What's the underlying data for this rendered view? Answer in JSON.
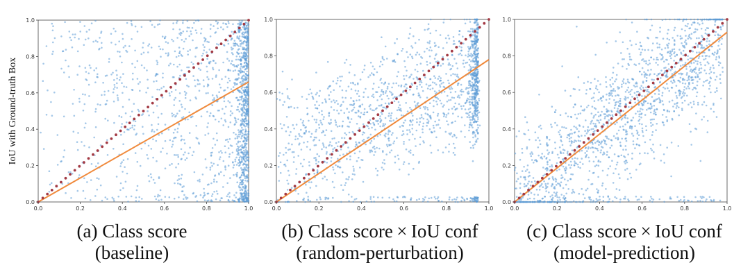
{
  "figure": {
    "ylabel": "IoU with Ground-truth Box"
  },
  "colors": {
    "scatter": "#5b9bd5",
    "fit_line": "#f08a3c",
    "identity_line": "#a33a44",
    "axis": "#444444",
    "background": "#ffffff"
  },
  "captions": [
    {
      "letter": "(a)",
      "line1": "(a) Class score",
      "line2": "(baseline)"
    },
    {
      "letter": "(b)",
      "line1": "(b) Class score × IoU conf",
      "line2": "(random-perturbation)"
    },
    {
      "letter": "(c)",
      "line1": "(c) Class score × IoU conf",
      "line2": "(model-prediction)"
    }
  ],
  "chart_data": [
    {
      "type": "scatter",
      "title": "(a) Class score (baseline)",
      "xlabel": "",
      "ylabel": "IoU with Ground-truth Box",
      "xlim": [
        0,
        1
      ],
      "ylim": [
        0,
        1
      ],
      "xticks": [
        "0.0",
        "0.2",
        "0.4",
        "0.6",
        "0.8",
        "1.0"
      ],
      "yticks": [
        "0.0",
        "0.2",
        "0.4",
        "0.6",
        "0.8",
        "1.0"
      ],
      "series": [
        {
          "name": "detections",
          "kind": "points",
          "n_points": 1600,
          "x_concentration": "dense near x=1.0",
          "y_range": [
            0,
            1
          ]
        },
        {
          "name": "linear fit",
          "kind": "line",
          "x": [
            0.0,
            1.0
          ],
          "y": [
            0.0,
            0.66
          ]
        },
        {
          "name": "y = x",
          "kind": "dotted-line",
          "x": [
            0.0,
            1.0
          ],
          "y": [
            0.0,
            1.0
          ]
        }
      ]
    },
    {
      "type": "scatter",
      "title": "(b) Class score × IoU conf (random-perturbation)",
      "xlabel": "",
      "ylabel": "",
      "xlim": [
        0,
        1
      ],
      "ylim": [
        0,
        1
      ],
      "xticks": [
        "0.0",
        "0.2",
        "0.4",
        "0.6",
        "0.8",
        "1.0"
      ],
      "yticks": [
        "0.0",
        "0.2",
        "0.4",
        "0.6",
        "0.8",
        "1.0"
      ],
      "series": [
        {
          "name": "detections",
          "kind": "points",
          "n_points": 1600,
          "x_concentration": "dense near x=0.95",
          "y_range": [
            0,
            1
          ]
        },
        {
          "name": "linear fit",
          "kind": "line",
          "x": [
            0.0,
            1.0
          ],
          "y": [
            0.0,
            0.78
          ]
        },
        {
          "name": "y = x",
          "kind": "dotted-line",
          "x": [
            0.0,
            1.0
          ],
          "y": [
            0.0,
            1.0
          ]
        }
      ]
    },
    {
      "type": "scatter",
      "title": "(c) Class score × IoU conf (model-prediction)",
      "xlabel": "",
      "ylabel": "",
      "xlim": [
        0,
        1
      ],
      "ylim": [
        0,
        1
      ],
      "xticks": [
        "0.0",
        "0.2",
        "0.4",
        "0.6",
        "0.8",
        "1.0"
      ],
      "yticks": [
        "0.0",
        "0.2",
        "0.4",
        "0.6",
        "0.8",
        "1.0"
      ],
      "series": [
        {
          "name": "detections",
          "kind": "points",
          "n_points": 1600,
          "x_concentration": "along diagonal",
          "y_range": [
            0,
            1
          ]
        },
        {
          "name": "linear fit",
          "kind": "line",
          "x": [
            0.0,
            1.0
          ],
          "y": [
            0.0,
            0.93
          ]
        },
        {
          "name": "y = x",
          "kind": "dotted-line",
          "x": [
            0.0,
            1.0
          ],
          "y": [
            0.0,
            1.0
          ]
        }
      ]
    }
  ]
}
